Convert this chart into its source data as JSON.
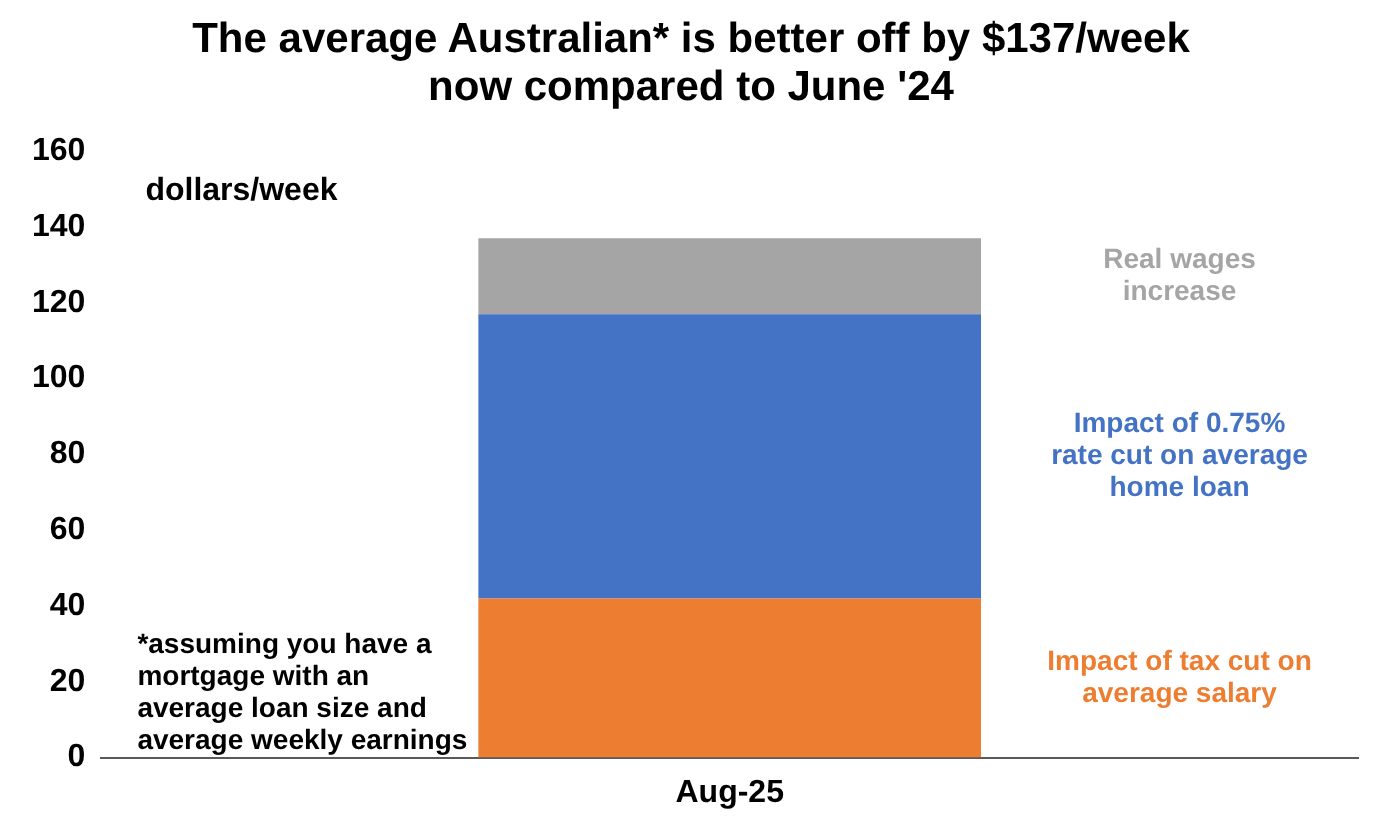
{
  "chart_data": {
    "type": "bar",
    "title": "The average Australian* is better off by $137/week now compared to June '24",
    "ylabel": "dollars/week",
    "categories": [
      "Aug-25"
    ],
    "stacked": true,
    "series": [
      {
        "name": "Impact of tax cut on average salary",
        "color": "#ed7d31",
        "values": [
          42
        ]
      },
      {
        "name": "Impact of 0.75% rate cut on average home loan",
        "color": "#4472c4",
        "values": [
          75
        ]
      },
      {
        "name": "Real wages increase",
        "color": "#a5a5a5",
        "values": [
          20
        ]
      }
    ],
    "ylim": [
      0,
      160
    ],
    "yticks": [
      0,
      20,
      40,
      60,
      80,
      100,
      120,
      140,
      160
    ],
    "grid": false,
    "legend": false,
    "annotations": [
      "*assuming you have a mortgage with an average loan size and average weekly earnings"
    ]
  }
}
